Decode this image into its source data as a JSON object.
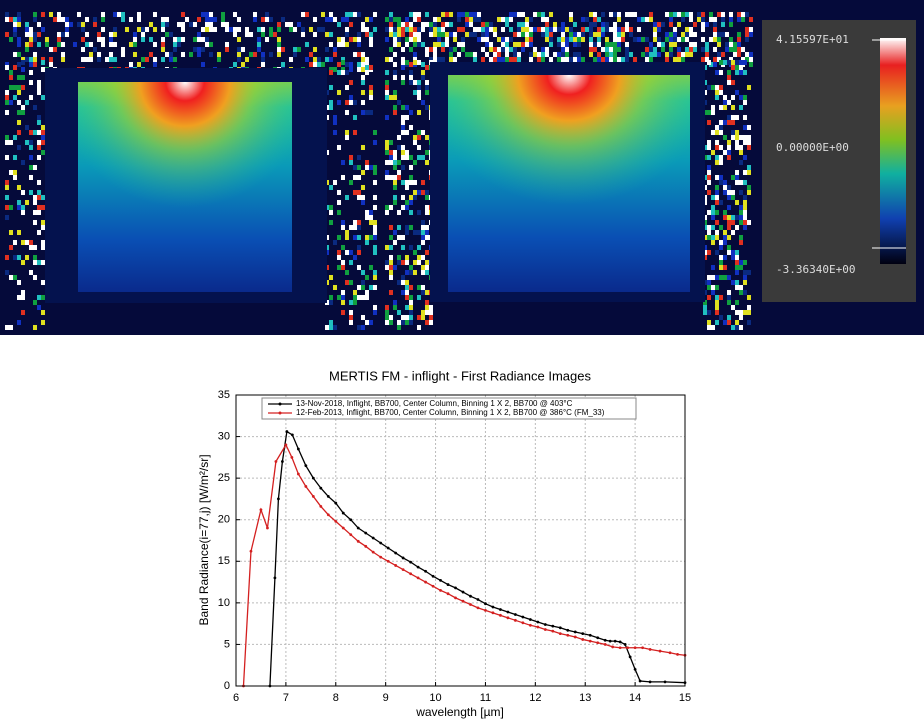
{
  "images": {
    "colorbar_labels": [
      "4.15597E+01",
      "0.00000E+00",
      "-3.36340E+00"
    ]
  },
  "chart_data": {
    "type": "line",
    "title": "MERTIS FM - inflight - First Radiance Images",
    "x_label": "wavelength [µm]",
    "y_label": "Band Radiance(i=77,j) [W/m²/sr]",
    "xlim": [
      6,
      15
    ],
    "xticks": [
      6,
      7,
      8,
      9,
      10,
      11,
      12,
      13,
      14,
      15
    ],
    "ylim": [
      0,
      35
    ],
    "yticks": [
      0,
      5,
      10,
      15,
      20,
      25,
      30,
      35
    ],
    "grid": true,
    "series": [
      {
        "name": "13-Nov-2018, Inflight, BB700, Center Column, Binning 1 X 2, BB700 @ 403°C",
        "color": "#000000",
        "x": [
          6.68,
          6.78,
          6.85,
          6.93,
          7.02,
          7.13,
          7.25,
          7.4,
          7.55,
          7.7,
          7.85,
          8.0,
          8.15,
          8.3,
          8.45,
          8.6,
          8.75,
          8.9,
          9.05,
          9.2,
          9.35,
          9.5,
          9.65,
          9.8,
          9.95,
          10.1,
          10.25,
          10.4,
          10.55,
          10.7,
          10.85,
          11.0,
          11.15,
          11.3,
          11.45,
          11.6,
          11.75,
          11.9,
          12.05,
          12.2,
          12.35,
          12.5,
          12.65,
          12.8,
          12.95,
          13.1,
          13.25,
          13.4,
          13.5,
          13.6,
          13.7,
          13.8,
          13.9,
          14.0,
          14.1,
          14.3,
          14.6,
          15.0
        ],
        "values": [
          0,
          13,
          22.5,
          27,
          30.6,
          30.2,
          28.5,
          26.5,
          25,
          23.8,
          22.8,
          22,
          20.8,
          20,
          19,
          18.4,
          17.8,
          17.2,
          16.6,
          16,
          15.4,
          14.9,
          14.3,
          13.8,
          13.2,
          12.7,
          12.2,
          11.8,
          11.3,
          10.8,
          10.4,
          9.9,
          9.5,
          9.2,
          8.9,
          8.6,
          8.3,
          8.0,
          7.7,
          7.4,
          7.2,
          7.0,
          6.7,
          6.5,
          6.3,
          6.1,
          5.8,
          5.5,
          5.4,
          5.4,
          5.3,
          5.0,
          3.5,
          2.0,
          0.6,
          0.5,
          0.5,
          0.4
        ]
      },
      {
        "name": "12-Feb-2013, Inflight, BB700, Center Column, Binning 1 X 2, BB700 @ 386°C (FM_33)",
        "color": "#d42020",
        "x": [
          6.15,
          6.3,
          6.5,
          6.63,
          6.8,
          7.0,
          7.12,
          7.25,
          7.4,
          7.55,
          7.7,
          7.85,
          8.0,
          8.15,
          8.3,
          8.45,
          8.6,
          8.75,
          8.9,
          9.05,
          9.2,
          9.35,
          9.5,
          9.65,
          9.8,
          9.95,
          10.1,
          10.25,
          10.4,
          10.55,
          10.7,
          10.85,
          11.0,
          11.15,
          11.3,
          11.45,
          11.6,
          11.75,
          11.9,
          12.05,
          12.2,
          12.35,
          12.5,
          12.65,
          12.8,
          12.95,
          13.1,
          13.25,
          13.4,
          13.55,
          13.7,
          13.85,
          14.0,
          14.15,
          14.3,
          14.5,
          14.7,
          14.85,
          15.0
        ],
        "values": [
          0,
          16.2,
          21.2,
          19,
          27,
          29,
          27.5,
          25.5,
          24,
          22.8,
          21.6,
          20.6,
          19.8,
          19,
          18.2,
          17.4,
          16.8,
          16.1,
          15.5,
          15,
          14.5,
          14,
          13.5,
          13,
          12.5,
          12,
          11.5,
          11.1,
          10.6,
          10.2,
          9.8,
          9.4,
          9.1,
          8.8,
          8.5,
          8.2,
          7.9,
          7.6,
          7.3,
          7.1,
          6.8,
          6.6,
          6.3,
          6.1,
          5.9,
          5.6,
          5.4,
          5.2,
          5.0,
          4.7,
          4.6,
          4.6,
          4.6,
          4.6,
          4.4,
          4.2,
          4.0,
          3.8,
          3.7
        ]
      }
    ]
  }
}
